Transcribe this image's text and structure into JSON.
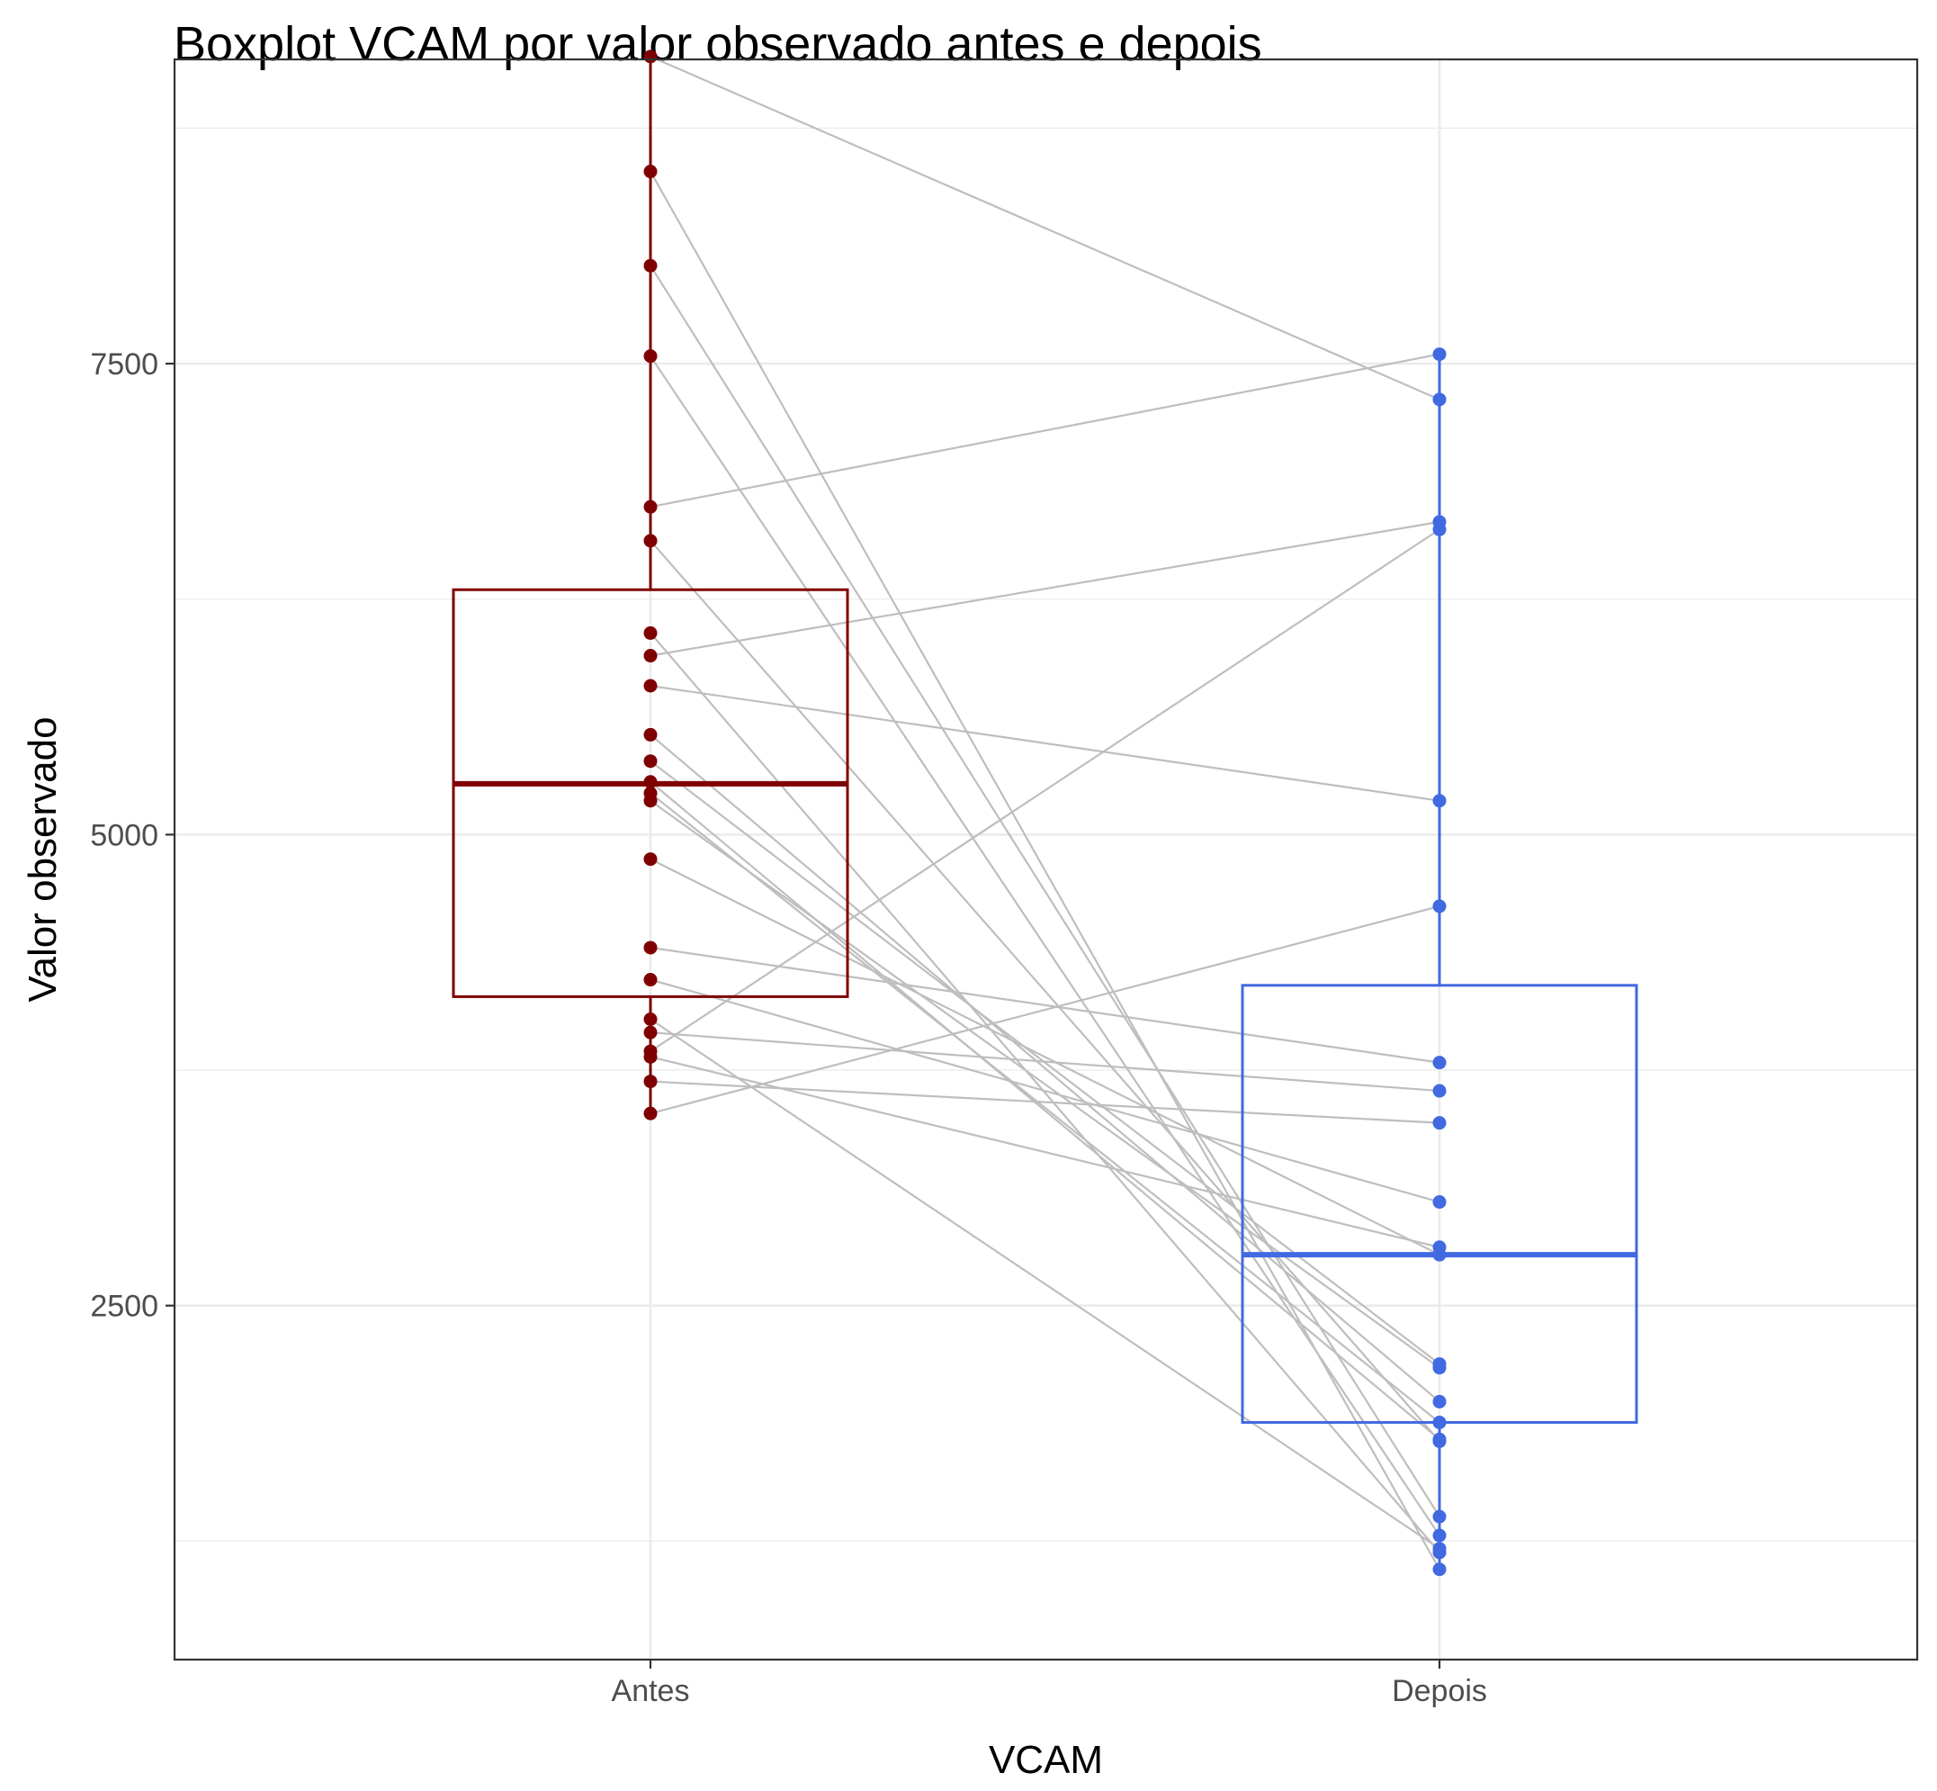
{
  "chart_data": {
    "type": "boxplot",
    "title": "Boxplot VCAM por valor observado antes e depois",
    "xlabel": "VCAM",
    "ylabel": "Valor observado",
    "categories": [
      "Antes",
      "Depois"
    ],
    "ylim": [
      621,
      9115
    ],
    "y_ticks": [
      2500,
      5000,
      7500
    ],
    "y_tick_labels": [
      "2500",
      "5000",
      "7500"
    ],
    "grid": true,
    "colors": {
      "Antes": "#7f0000",
      "Depois": "#4169e1",
      "lines": "#bebebe"
    },
    "boxes": [
      {
        "name": "Antes",
        "min": 3520,
        "q1": 4140,
        "median": 5270,
        "q3": 6300,
        "max": 9130
      },
      {
        "name": "Depois",
        "min": 1090,
        "q1": 1880,
        "median": 2770,
        "q3": 4200,
        "max": 7550
      }
    ],
    "pairs": [
      [
        9130,
        7310
      ],
      [
        8520,
        1100
      ],
      [
        8020,
        1380
      ],
      [
        7540,
        1280
      ],
      [
        6740,
        7550
      ],
      [
        6560,
        1780
      ],
      [
        6070,
        1190
      ],
      [
        5950,
        6660
      ],
      [
        5790,
        5180
      ],
      [
        5530,
        1990
      ],
      [
        5390,
        2190
      ],
      [
        5280,
        1790
      ],
      [
        5220,
        1880
      ],
      [
        5180,
        2170
      ],
      [
        4870,
        2770
      ],
      [
        4400,
        3790
      ],
      [
        4230,
        3050
      ],
      [
        4020,
        1210
      ],
      [
        3950,
        3640
      ],
      [
        3850,
        6620
      ],
      [
        3820,
        2810
      ],
      [
        3690,
        3470
      ],
      [
        3520,
        4620
      ]
    ]
  }
}
